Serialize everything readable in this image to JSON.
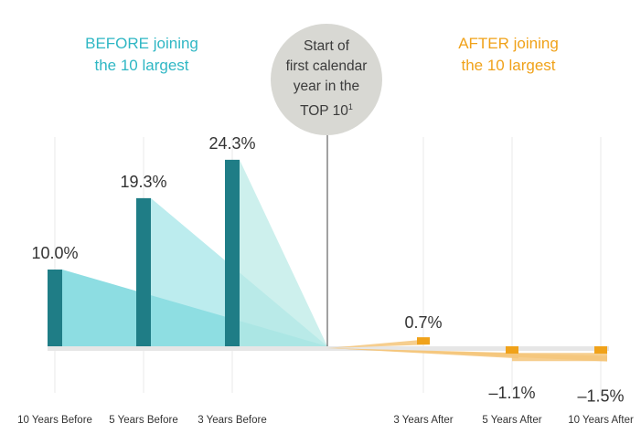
{
  "chart_data": {
    "type": "bar",
    "categories": [
      "10 Years Before",
      "5 Years Before",
      "3 Years Before",
      "3 Years After",
      "5 Years After",
      "10 Years After"
    ],
    "values": [
      10.0,
      19.3,
      24.3,
      0.7,
      -1.1,
      -1.5
    ],
    "value_labels": [
      "10.0%",
      "19.3%",
      "24.3%",
      "0.7%",
      "–1.1%",
      "–1.5%"
    ],
    "groups": [
      "before",
      "before",
      "before",
      "after",
      "after",
      "after"
    ],
    "ylabel": "",
    "xlabel": "",
    "ylim": [
      -1.5,
      24.3
    ]
  },
  "labels": {
    "before_line1": "BEFORE joining",
    "before_line2": "the 10 largest",
    "after_line1": "AFTER joining",
    "after_line2": "the 10 largest",
    "center_line1": "Start of",
    "center_line2": "first calendar",
    "center_line3": "year in the",
    "center_line4": "TOP 10",
    "center_sup": "1"
  },
  "colors": {
    "before_bar": "#1f7d86",
    "before_fill_1": "#5ccfd6",
    "before_fill_2": "#8fdfe3",
    "before_fill_3": "#b8e9e6",
    "after_bar": "#f0a21a",
    "after_fill": "#f5c67a",
    "before_text": "#2fb7c4",
    "after_text": "#f0a21a",
    "circle": "#d8d8d3",
    "baseline": "#e6e6e6",
    "gridline": "#e8e8e8",
    "label_text": "#333333"
  }
}
